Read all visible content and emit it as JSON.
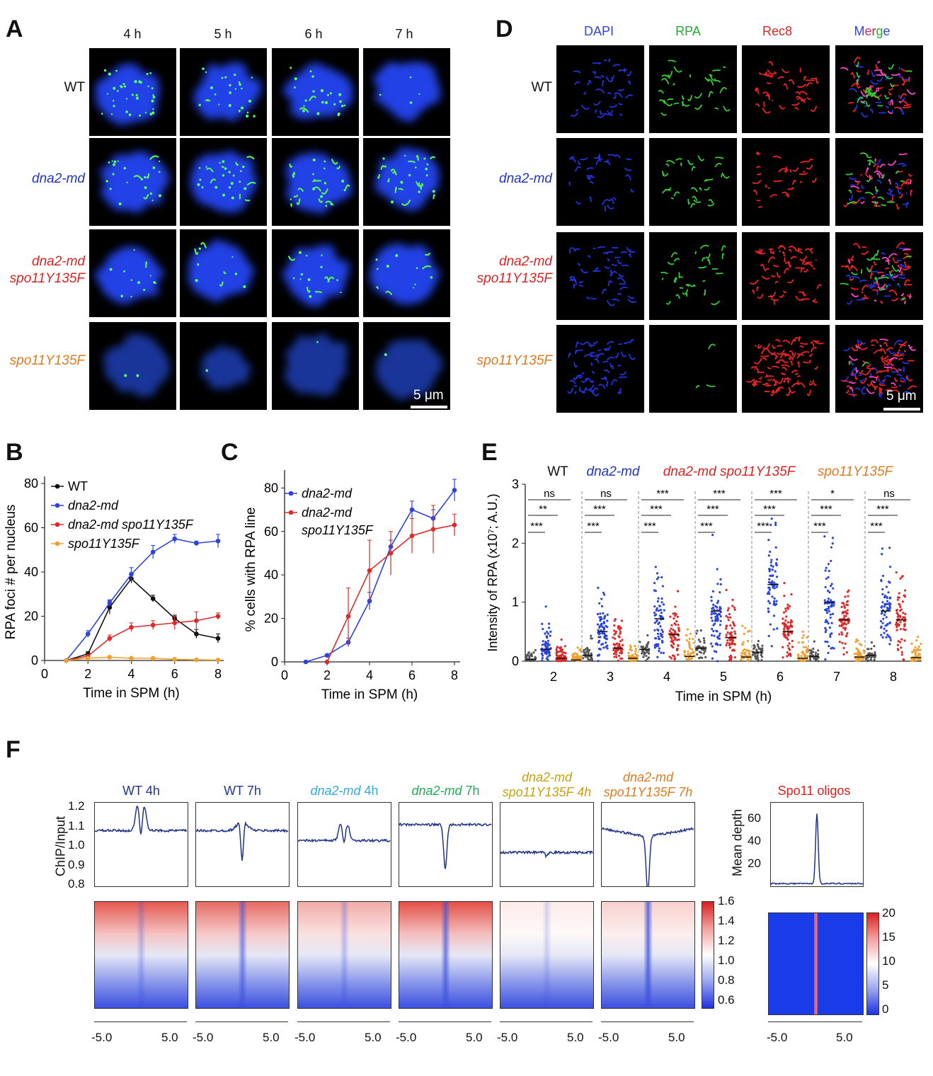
{
  "panels": {
    "A": "A",
    "B": "B",
    "C": "C",
    "D": "D",
    "E": "E",
    "F": "F"
  },
  "panelA": {
    "columns": [
      "4 h",
      "5 h",
      "6 h",
      "7 h"
    ],
    "rows": [
      {
        "label1": "WT",
        "label2": "",
        "color": "#111111"
      },
      {
        "label1": "dna2-md",
        "label2": "",
        "color": "#2233cc"
      },
      {
        "label1": "dna2-md",
        "label2": "spo11Y135F",
        "color": "#dd2222"
      },
      {
        "label1": "spo11Y135F",
        "label2": "",
        "color": "#e07a20"
      }
    ],
    "scalebar": "5 μm"
  },
  "panelD": {
    "columns": [
      {
        "label": "DAPI",
        "color": "#3344dd"
      },
      {
        "label": "RPA",
        "color": "#22aa33"
      },
      {
        "label": "Rec8",
        "color": "#dd2222"
      },
      {
        "label": "Merge",
        "color": "#3344dd"
      }
    ],
    "rows": [
      {
        "label1": "WT",
        "label2": "",
        "color": "#111111"
      },
      {
        "label1": "dna2-md",
        "label2": "",
        "color": "#2233cc"
      },
      {
        "label1": "dna2-md",
        "label2": "spo11Y135F",
        "color": "#dd2222"
      },
      {
        "label1": "spo11Y135F",
        "label2": "",
        "color": "#e07a20"
      }
    ],
    "scalebar": "5 μm"
  },
  "chart_data": [
    {
      "panel": "B",
      "type": "line",
      "xlabel": "Time in SPM (h)",
      "ylabel": "RPA foci # per nucleus",
      "xlim": [
        0,
        8
      ],
      "ylim": [
        0,
        80
      ],
      "xticks": [
        0,
        2,
        4,
        6,
        8
      ],
      "yticks": [
        0,
        20,
        40,
        60,
        80
      ],
      "legend": "top-left",
      "series": [
        {
          "name": "WT",
          "color": "#111111",
          "x": [
            1,
            2,
            3,
            4,
            5,
            6,
            7,
            8
          ],
          "y": [
            0,
            3,
            24,
            37,
            28,
            19,
            12,
            10
          ],
          "err": [
            0,
            1,
            3,
            2,
            1.5,
            1.5,
            2,
            2
          ]
        },
        {
          "name": "dna2-md",
          "color": "#2a44dd",
          "x": [
            1,
            2,
            3,
            4,
            5,
            6,
            7,
            8
          ],
          "y": [
            0,
            12,
            26,
            39,
            49,
            55,
            53,
            54
          ],
          "err": [
            0,
            1.5,
            1.5,
            3,
            3,
            2,
            1,
            3
          ]
        },
        {
          "name": "dna2-md  spo11Y135F",
          "color": "#dd2a2a",
          "x": [
            1,
            2,
            3,
            4,
            5,
            6,
            7,
            8
          ],
          "y": [
            0,
            2,
            10,
            15,
            16,
            17,
            18,
            20
          ],
          "err": [
            0,
            0.5,
            1.5,
            2,
            2,
            3,
            4,
            1.5
          ]
        },
        {
          "name": "spo11Y135F",
          "color": "#f0a030",
          "x": [
            1,
            2,
            3,
            4,
            5,
            6,
            7,
            8
          ],
          "y": [
            0,
            1,
            1.5,
            1,
            1,
            0.5,
            0.3,
            0.2
          ],
          "err": [
            0,
            0.3,
            0.3,
            0.3,
            0.3,
            0.2,
            0.2,
            0.1
          ]
        }
      ]
    },
    {
      "panel": "C",
      "type": "line",
      "xlabel": "Time in SPM (h)",
      "ylabel": "% cells with RPA line",
      "xlim": [
        0,
        8
      ],
      "ylim": [
        0,
        85
      ],
      "xticks": [
        0,
        2,
        4,
        6,
        8
      ],
      "yticks": [
        0,
        20,
        40,
        60,
        80
      ],
      "legend": "top-left",
      "series": [
        {
          "name": "dna2-md",
          "color": "#2a44dd",
          "x": [
            1,
            2,
            3,
            4,
            5,
            6,
            7,
            8
          ],
          "y": [
            0,
            3,
            9,
            28,
            53,
            70,
            66,
            79
          ],
          "err": [
            0,
            0.5,
            2,
            4,
            3,
            4,
            4,
            5
          ]
        },
        {
          "name": "dna2-md spo11Y135F",
          "color": "#dd2a2a",
          "x": [
            2,
            3,
            4,
            5,
            6,
            7,
            8
          ],
          "y": [
            0,
            21,
            42,
            50,
            58,
            61,
            63
          ],
          "err": [
            0,
            13,
            14,
            10,
            8,
            11,
            5
          ]
        }
      ]
    },
    {
      "panel": "E",
      "type": "scatter",
      "xlabel": "Time in SPM (h)",
      "ylabel": "Intensity of RPA (x10⁷; A.U.)",
      "ylim": [
        0,
        3
      ],
      "yticks": [
        0,
        1,
        2,
        3
      ],
      "categories": [
        "2",
        "3",
        "4",
        "5",
        "6",
        "7",
        "8"
      ],
      "group_titles": [
        {
          "label": "WT",
          "color": "#111111"
        },
        {
          "label": "dna2-md",
          "color": "#2233cc"
        },
        {
          "label": "dna2-md  spo11Y135F",
          "color": "#dd2222"
        },
        {
          "label": "spo11Y135F",
          "color": "#e07a20"
        }
      ],
      "series": [
        {
          "name": "WT",
          "color": "#555555",
          "means": [
            0.03,
            0.1,
            0.2,
            0.22,
            0.15,
            0.08,
            0.1
          ],
          "maxes": [
            0.25,
            0.5,
            0.5,
            0.6,
            0.5,
            0.4,
            0.35
          ]
        },
        {
          "name": "dna2-md",
          "color": "#2a44dd",
          "means": [
            0.2,
            0.5,
            0.72,
            0.85,
            1.3,
            1.0,
            0.85
          ],
          "maxes": [
            1.1,
            1.8,
            2.2,
            2.3,
            2.6,
            2.4,
            2.0
          ]
        },
        {
          "name": "dna2-md spo11Y135F",
          "color": "#dd2a2a",
          "means": [
            0.05,
            0.22,
            0.45,
            0.4,
            0.5,
            0.7,
            0.7
          ],
          "maxes": [
            0.5,
            1.0,
            1.5,
            1.5,
            1.4,
            1.5,
            1.6
          ]
        },
        {
          "name": "spo11Y135F",
          "color": "#f0a030",
          "means": [
            0.02,
            0.05,
            0.08,
            0.07,
            0.05,
            0.07,
            0.06
          ],
          "maxes": [
            0.3,
            0.4,
            0.8,
            0.85,
            0.6,
            0.5,
            0.5
          ]
        }
      ],
      "significance": [
        [
          "ns",
          "**",
          "***"
        ],
        [
          "ns",
          "***",
          "***"
        ],
        [
          "***",
          "***",
          "***"
        ],
        [
          "***",
          "***",
          "***"
        ],
        [
          "***",
          "***",
          "***"
        ],
        [
          "*",
          "***",
          "***"
        ],
        [
          "ns",
          "***",
          "***"
        ]
      ]
    },
    {
      "panel": "F",
      "type": "line",
      "ylabel": "ChIP/Input",
      "ylim": [
        0.8,
        1.2
      ],
      "yticks": [
        "1.2",
        "1.1",
        "1.0",
        "0.9",
        "0.8"
      ],
      "xticks": [
        "-5.0",
        "5.0"
      ],
      "profiles": [
        {
          "t1": "WT 4h",
          "t2": "",
          "c1": "#223388",
          "c2": "",
          "italic": false,
          "base": 1.08,
          "shape": "double-peak",
          "amp": 0.12
        },
        {
          "t1": "WT 7h",
          "t2": "",
          "c1": "#223399",
          "c2": "",
          "italic": false,
          "base": 1.08,
          "shape": "peak-dip",
          "amp": 0.2
        },
        {
          "t1": "dna2-md",
          "t2": "4h",
          "c1": "#33aadd",
          "c2": "#33aadd",
          "italic": true,
          "base": 1.03,
          "shape": "double-peak",
          "amp": 0.08
        },
        {
          "t1": "dna2-md",
          "t2": "7h",
          "c1": "#22aa55",
          "c2": "#22aa55",
          "italic": true,
          "base": 1.11,
          "shape": "dip",
          "amp": 0.22
        },
        {
          "t1": "dna2-md",
          "t2": "spo11Y135F  4h",
          "c1": "#c8a010",
          "c2": "#c8a010",
          "italic": true,
          "base": 0.97,
          "shape": "flat",
          "amp": 0.02
        },
        {
          "t1": "dna2-md",
          "t2": "spo11Y135F  7h",
          "c1": "#e07a20",
          "c2": "#e07a20",
          "italic": true,
          "base": 1.05,
          "shape": "dip",
          "amp": 0.28
        }
      ],
      "heat_scale": [
        "1.6",
        "1.4",
        "1.2",
        "1.0",
        "0.8",
        "0.6"
      ],
      "spo11": {
        "title": "Spo11  oligos",
        "title_color": "#dd2222",
        "ylabel": "Mean depth",
        "yticks": [
          "60",
          "40",
          "20"
        ],
        "peak": 68,
        "base": 5,
        "heat_scale": [
          "20",
          "15",
          "10",
          "5",
          "0"
        ]
      }
    }
  ]
}
